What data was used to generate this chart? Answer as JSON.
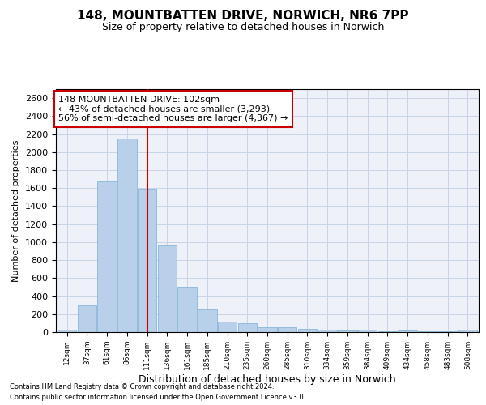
{
  "title": "148, MOUNTBATTEN DRIVE, NORWICH, NR6 7PP",
  "subtitle": "Size of property relative to detached houses in Norwich",
  "xlabel": "Distribution of detached houses by size in Norwich",
  "ylabel": "Number of detached properties",
  "footnote1": "Contains HM Land Registry data © Crown copyright and database right 2024.",
  "footnote2": "Contains public sector information licensed under the Open Government Licence v3.0.",
  "annotation_line1": "148 MOUNTBATTEN DRIVE: 102sqm",
  "annotation_line2": "← 43% of detached houses are smaller (3,293)",
  "annotation_line3": "56% of semi-detached houses are larger (4,367) →",
  "bar_color": "#b8d0ea",
  "bar_edge_color": "#7aafd4",
  "grid_color": "#c8d4e8",
  "bg_color": "#eef2f8",
  "bar_categories": [
    "12sqm",
    "37sqm",
    "61sqm",
    "86sqm",
    "111sqm",
    "136sqm",
    "161sqm",
    "185sqm",
    "210sqm",
    "235sqm",
    "260sqm",
    "285sqm",
    "310sqm",
    "334sqm",
    "359sqm",
    "384sqm",
    "409sqm",
    "434sqm",
    "458sqm",
    "483sqm",
    "508sqm"
  ],
  "bar_values": [
    25,
    300,
    1670,
    2150,
    1590,
    960,
    500,
    250,
    120,
    100,
    50,
    50,
    35,
    25,
    20,
    30,
    10,
    20,
    5,
    5,
    25
  ],
  "ylim": [
    0,
    2700
  ],
  "yticks": [
    0,
    200,
    400,
    600,
    800,
    1000,
    1200,
    1400,
    1600,
    1800,
    2000,
    2200,
    2400,
    2600
  ],
  "vline_color": "#cc0000",
  "annotation_box_color": "#cc0000",
  "annotation_box_fill": "#ffffff",
  "title_fontsize": 11,
  "subtitle_fontsize": 9
}
